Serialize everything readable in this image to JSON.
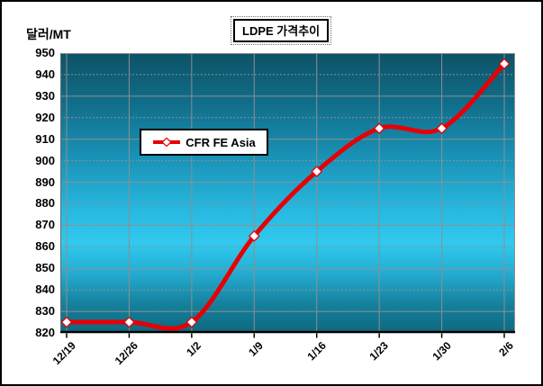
{
  "chart": {
    "title": "LDPE 가격추이",
    "y_axis_title": "달러/MT",
    "legend_label": "CFR FE Asia"
  },
  "chart_data": {
    "type": "line",
    "title": "LDPE 가격추이",
    "ylabel": "달러/MT",
    "xlabel": "",
    "categories": [
      "12/19",
      "12/26",
      "1/2",
      "1/9",
      "1/16",
      "1/23",
      "1/30",
      "2/6"
    ],
    "series": [
      {
        "name": "CFR FE Asia",
        "values": [
          825,
          825,
          825,
          865,
          895,
          915,
          915,
          945
        ],
        "color": "#e60006",
        "marker": "diamond",
        "marker_fill": "#ffffff",
        "smooth": true
      }
    ],
    "ylim": [
      820,
      950
    ],
    "y_tick_step": 10,
    "grid": {
      "horizontal": true,
      "vertical": true,
      "color": "#8f8f8f",
      "dashed_at_multiples_of": 20
    },
    "legend_position": "inside-upper-left",
    "plot_background": {
      "type": "vertical-gradient",
      "stops": [
        "#0c5266",
        "#2cc0e8",
        "#31c9ee",
        "#0e687e"
      ]
    }
  }
}
